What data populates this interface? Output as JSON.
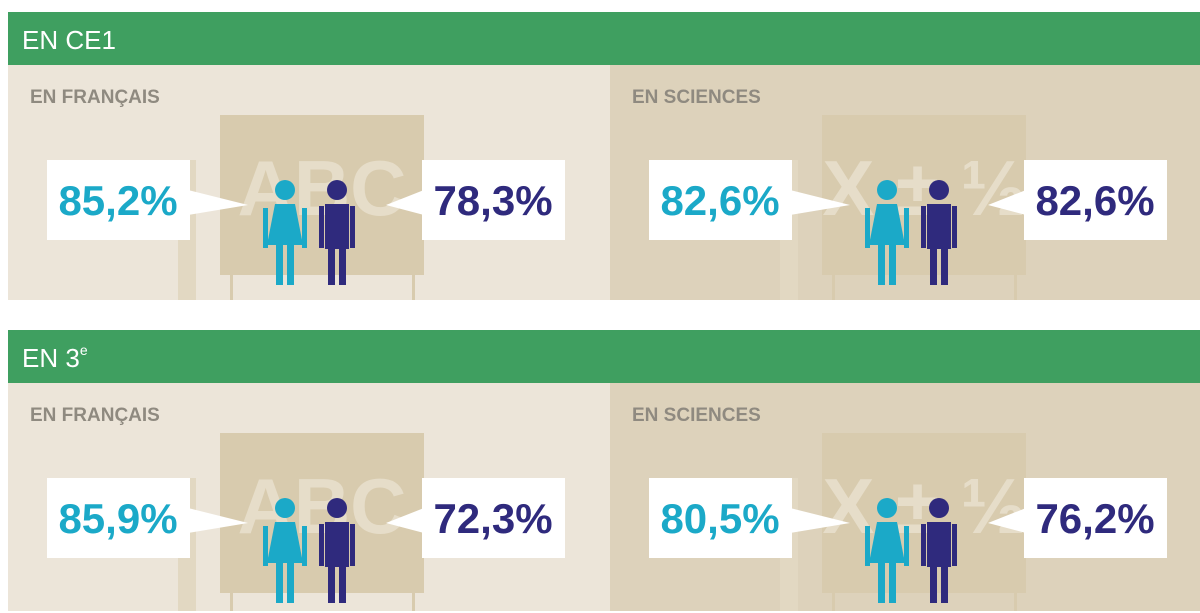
{
  "sections": [
    {
      "title": "EN CE1",
      "panels": [
        {
          "title": "EN FRANÇAIS",
          "board": "ABC",
          "girls": "85,2%",
          "boys": "78,3%"
        },
        {
          "title": "EN SCIENCES",
          "board": "X ± ½",
          "girls": "82,6%",
          "boys": "82,6%"
        }
      ]
    },
    {
      "title": "EN 3",
      "title_sup": "e",
      "panels": [
        {
          "title": "EN FRANÇAIS",
          "board": "ABC",
          "girls": "85,9%",
          "boys": "72,3%"
        },
        {
          "title": "EN SCIENCES",
          "board": "X ± ½",
          "girls": "80,5%",
          "boys": "76,2%"
        }
      ]
    }
  ]
}
